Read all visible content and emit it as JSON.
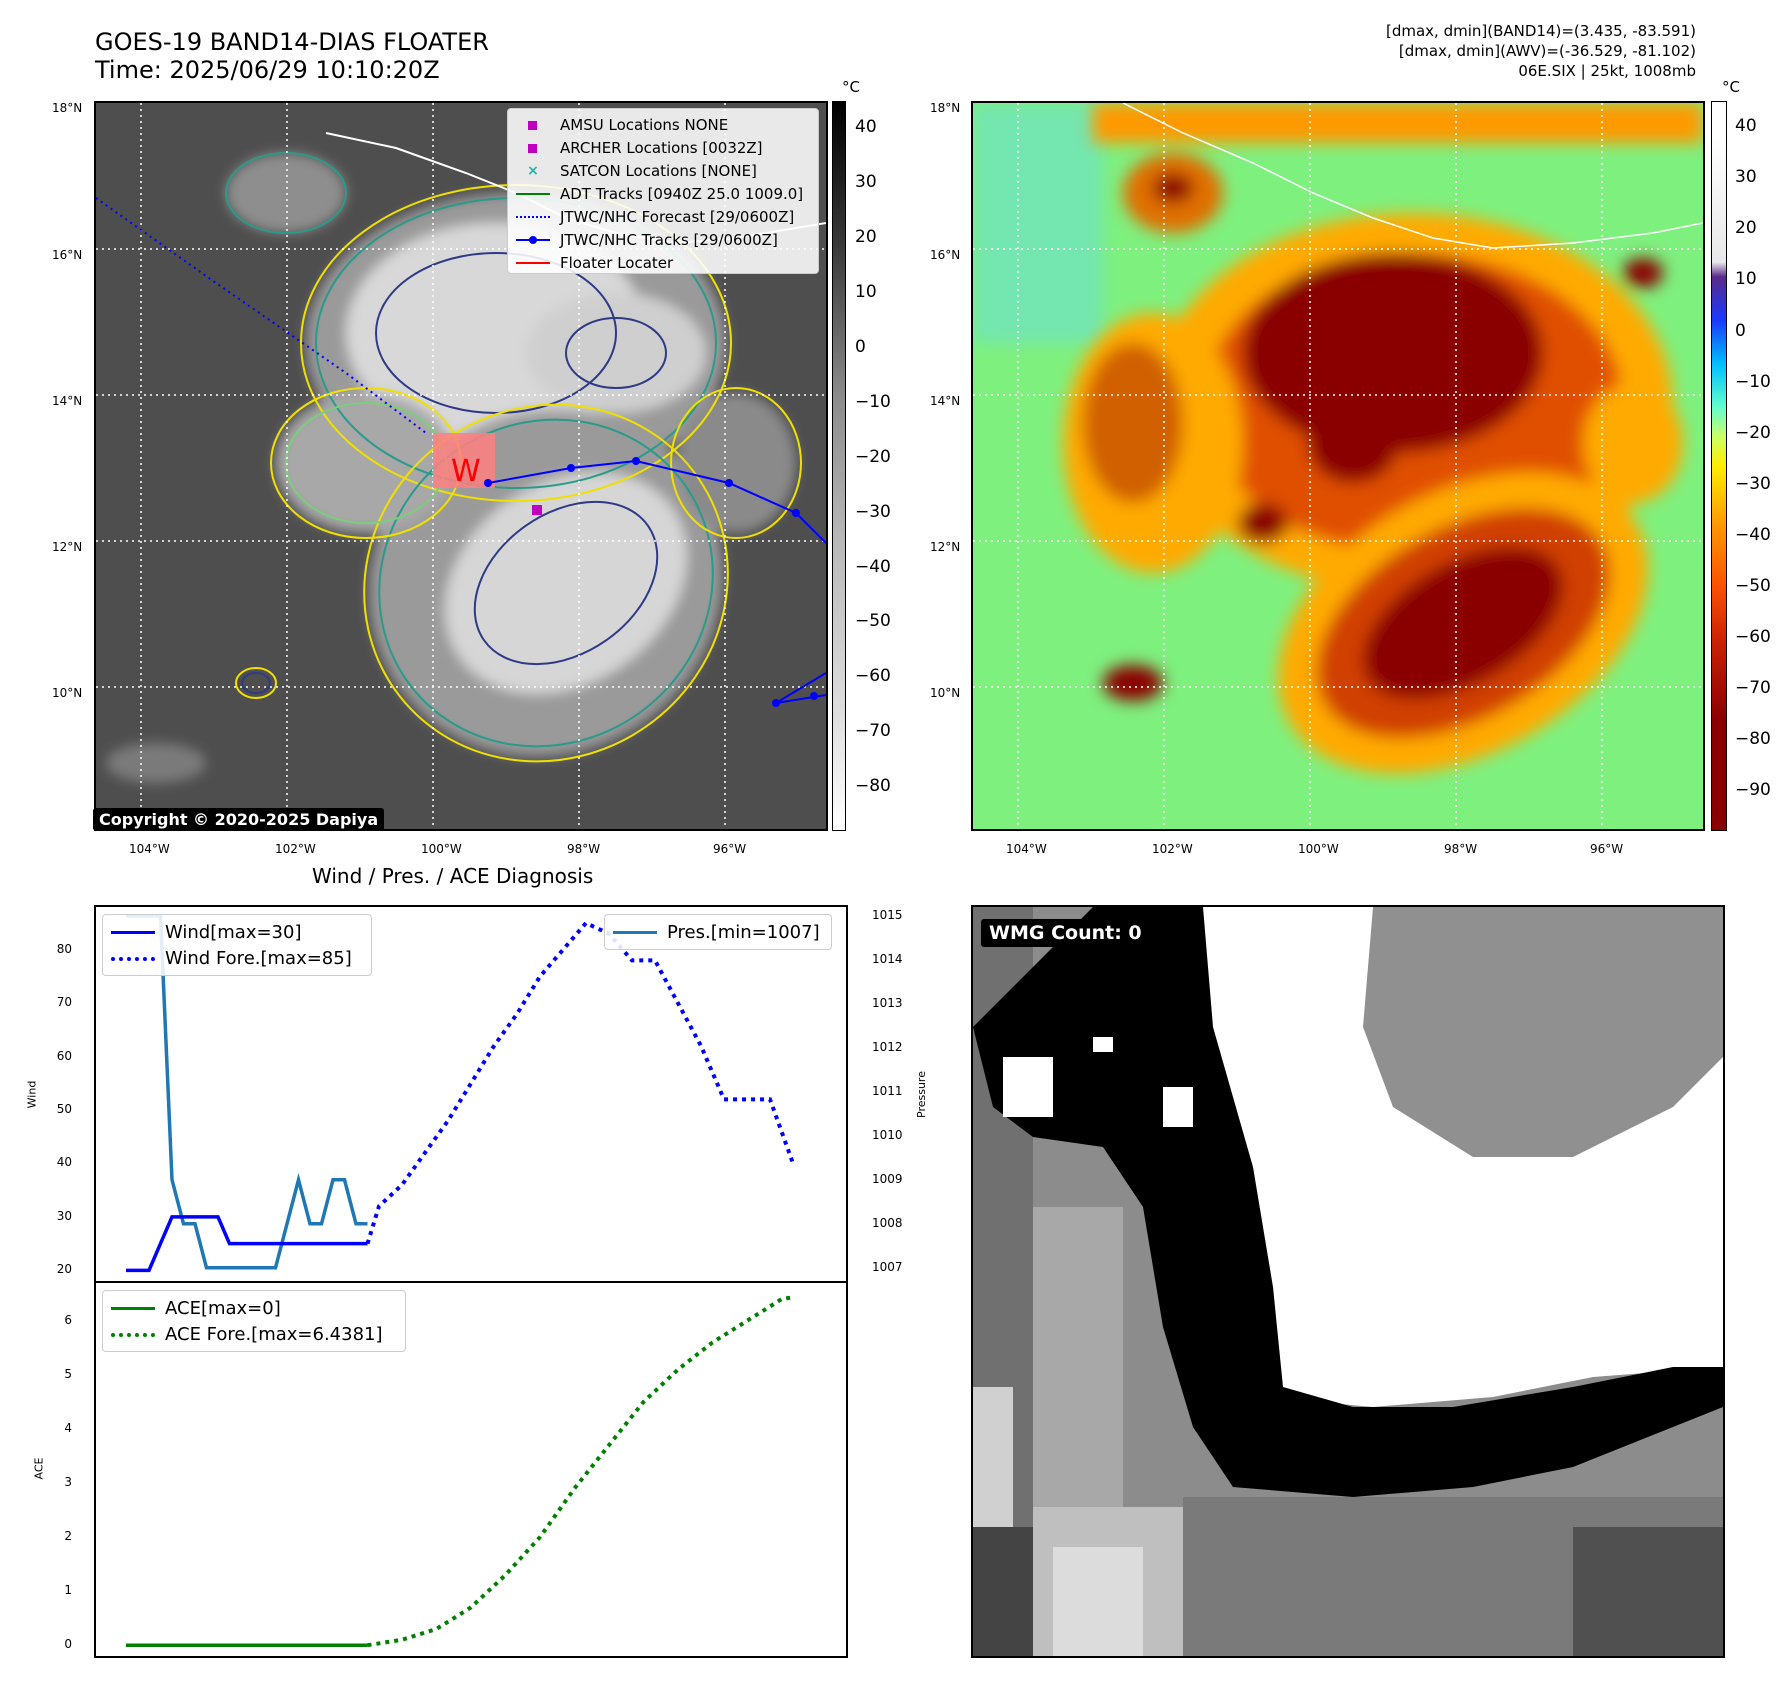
{
  "header": {
    "title_line1": "GOES-19 BAND14-DIAS FLOATER",
    "title_line2": "Time: 2025/06/29 10:10:20Z",
    "info_line1": "[dmax, dmin](BAND14)=(3.435, -83.591)",
    "info_line2": "[dmax, dmin](AWV)=(-36.529, -81.102)",
    "info_line3": "06E.SIX | 25kt, 1008mb"
  },
  "map_axes": {
    "lat_labels": [
      "18°N",
      "16°N",
      "14°N",
      "12°N",
      "10°N"
    ],
    "lon_labels": [
      "104°W",
      "102°W",
      "100°W",
      "98°W",
      "96°W"
    ]
  },
  "ir_panel": {
    "colorbar_unit": "°C",
    "colorbar_ticks": [
      "40",
      "30",
      "20",
      "10",
      "0",
      "−10",
      "−20",
      "−30",
      "−40",
      "−50",
      "−60",
      "−70",
      "−80"
    ],
    "copyright": "Copyright © 2020-2025 Dapiya",
    "legend": [
      {
        "label": "AMSU Locations NONE",
        "marker": "square",
        "color": "#c000c0"
      },
      {
        "label": "ARCHER Locations [0032Z]",
        "marker": "square",
        "color": "#c000c0"
      },
      {
        "label": "SATCON Locations [NONE]",
        "marker": "x",
        "color": "#20b2aa"
      },
      {
        "label": "ADT Tracks [0940Z 25.0 1009.0]",
        "marker": "line",
        "color": "#008000"
      },
      {
        "label": "JTWC/NHC Forecast [29/0600Z]",
        "marker": "dotted",
        "color": "#0000ff"
      },
      {
        "label": "JTWC/NHC Tracks [29/0600Z]",
        "marker": "line-dot",
        "color": "#0000ff"
      },
      {
        "label": "Floater Locater",
        "marker": "line",
        "color": "#ff0000"
      }
    ]
  },
  "awv_panel": {
    "colorbar_unit": "°C",
    "colorbar_ticks": [
      "40",
      "30",
      "20",
      "10",
      "0",
      "−10",
      "−20",
      "−30",
      "−40",
      "−50",
      "−60",
      "−70",
      "−80",
      "−90"
    ]
  },
  "wmg_panel": {
    "label": "WMG Count: 0"
  },
  "diagnosis": {
    "title": "Wind / Pres. / ACE Diagnosis",
    "wind_ylabel": "Wind",
    "pres_ylabel": "Pressure",
    "ace_ylabel": "ACE",
    "legend_wind": "Wind[max=30]",
    "legend_wind_fore": "Wind Fore.[max=85]",
    "legend_pres": "Pres.[min=1007]",
    "legend_ace": "ACE[max=0]",
    "legend_ace_fore": "ACE Fore.[max=6.4381]"
  },
  "chart_data": [
    {
      "type": "line",
      "title": "Wind / Pres. / ACE Diagnosis",
      "ylabel": "Wind",
      "ylim": [
        18,
        88
      ],
      "yticks": [
        20,
        30,
        40,
        50,
        60,
        70,
        80
      ],
      "x": [
        0,
        1,
        2,
        3,
        4,
        5,
        6,
        7,
        8,
        9,
        10,
        11,
        12,
        13,
        14,
        15,
        16,
        17,
        18,
        19,
        20,
        21
      ],
      "series": [
        {
          "name": "Wind[max=30]",
          "color": "#0000ff",
          "style": "solid",
          "x": [
            0,
            1,
            2,
            3,
            4,
            5,
            6,
            7,
            8,
            9,
            10,
            11,
            12,
            13,
            14,
            15,
            16,
            17,
            18,
            19,
            20,
            21
          ],
          "values": [
            20,
            20,
            20,
            25,
            30,
            30,
            30,
            30,
            30,
            25,
            25,
            25,
            25,
            25,
            25,
            25,
            25,
            25,
            25,
            25,
            25,
            25
          ]
        },
        {
          "name": "Wind Fore.[max=85]",
          "color": "#0000ff",
          "style": "dotted",
          "x": [
            21,
            22,
            24,
            26,
            28,
            30,
            32,
            34,
            36,
            38,
            40,
            42,
            44,
            46,
            48,
            50,
            52,
            54,
            56,
            58
          ],
          "values": [
            25,
            32,
            36,
            42,
            48,
            55,
            62,
            68,
            75,
            80,
            85,
            83,
            78,
            78,
            70,
            62,
            52,
            52,
            52,
            40
          ]
        }
      ]
    },
    {
      "type": "line",
      "ylabel": "Pressure",
      "ylim": [
        1006.7,
        1015.2
      ],
      "yticks": [
        1007,
        1008,
        1009,
        1010,
        1011,
        1012,
        1013,
        1014,
        1015
      ],
      "series": [
        {
          "name": "Pres.[min=1007]",
          "color": "#1f77b4",
          "style": "solid",
          "x": [
            0,
            1,
            2,
            3,
            4,
            5,
            6,
            7,
            8,
            9,
            10,
            11,
            12,
            13,
            14,
            15,
            16,
            17,
            18,
            19,
            20,
            21
          ],
          "values": [
            1015,
            1015,
            1015,
            1015,
            1009,
            1008,
            1008,
            1007,
            1007,
            1007,
            1007,
            1007,
            1007,
            1007,
            1008,
            1009,
            1008,
            1008,
            1009,
            1009,
            1008,
            1008
          ]
        }
      ]
    },
    {
      "type": "line",
      "ylabel": "ACE",
      "ylim": [
        -0.2,
        6.7
      ],
      "yticks": [
        0,
        1,
        2,
        3,
        4,
        5,
        6
      ],
      "series": [
        {
          "name": "ACE[max=0]",
          "color": "#008000",
          "style": "solid",
          "x": [
            0,
            21
          ],
          "values": [
            0,
            0
          ]
        },
        {
          "name": "ACE Fore.[max=6.4381]",
          "color": "#008000",
          "style": "dotted",
          "x": [
            21,
            24,
            27,
            30,
            33,
            36,
            39,
            42,
            45,
            48,
            51,
            54,
            57,
            58
          ],
          "values": [
            0,
            0.1,
            0.3,
            0.7,
            1.3,
            2.0,
            2.9,
            3.7,
            4.5,
            5.1,
            5.6,
            6.0,
            6.4,
            6.4381
          ]
        }
      ]
    }
  ]
}
